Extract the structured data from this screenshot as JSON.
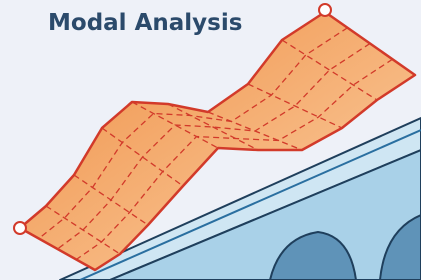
{
  "title": "Modal Analysis"
}
